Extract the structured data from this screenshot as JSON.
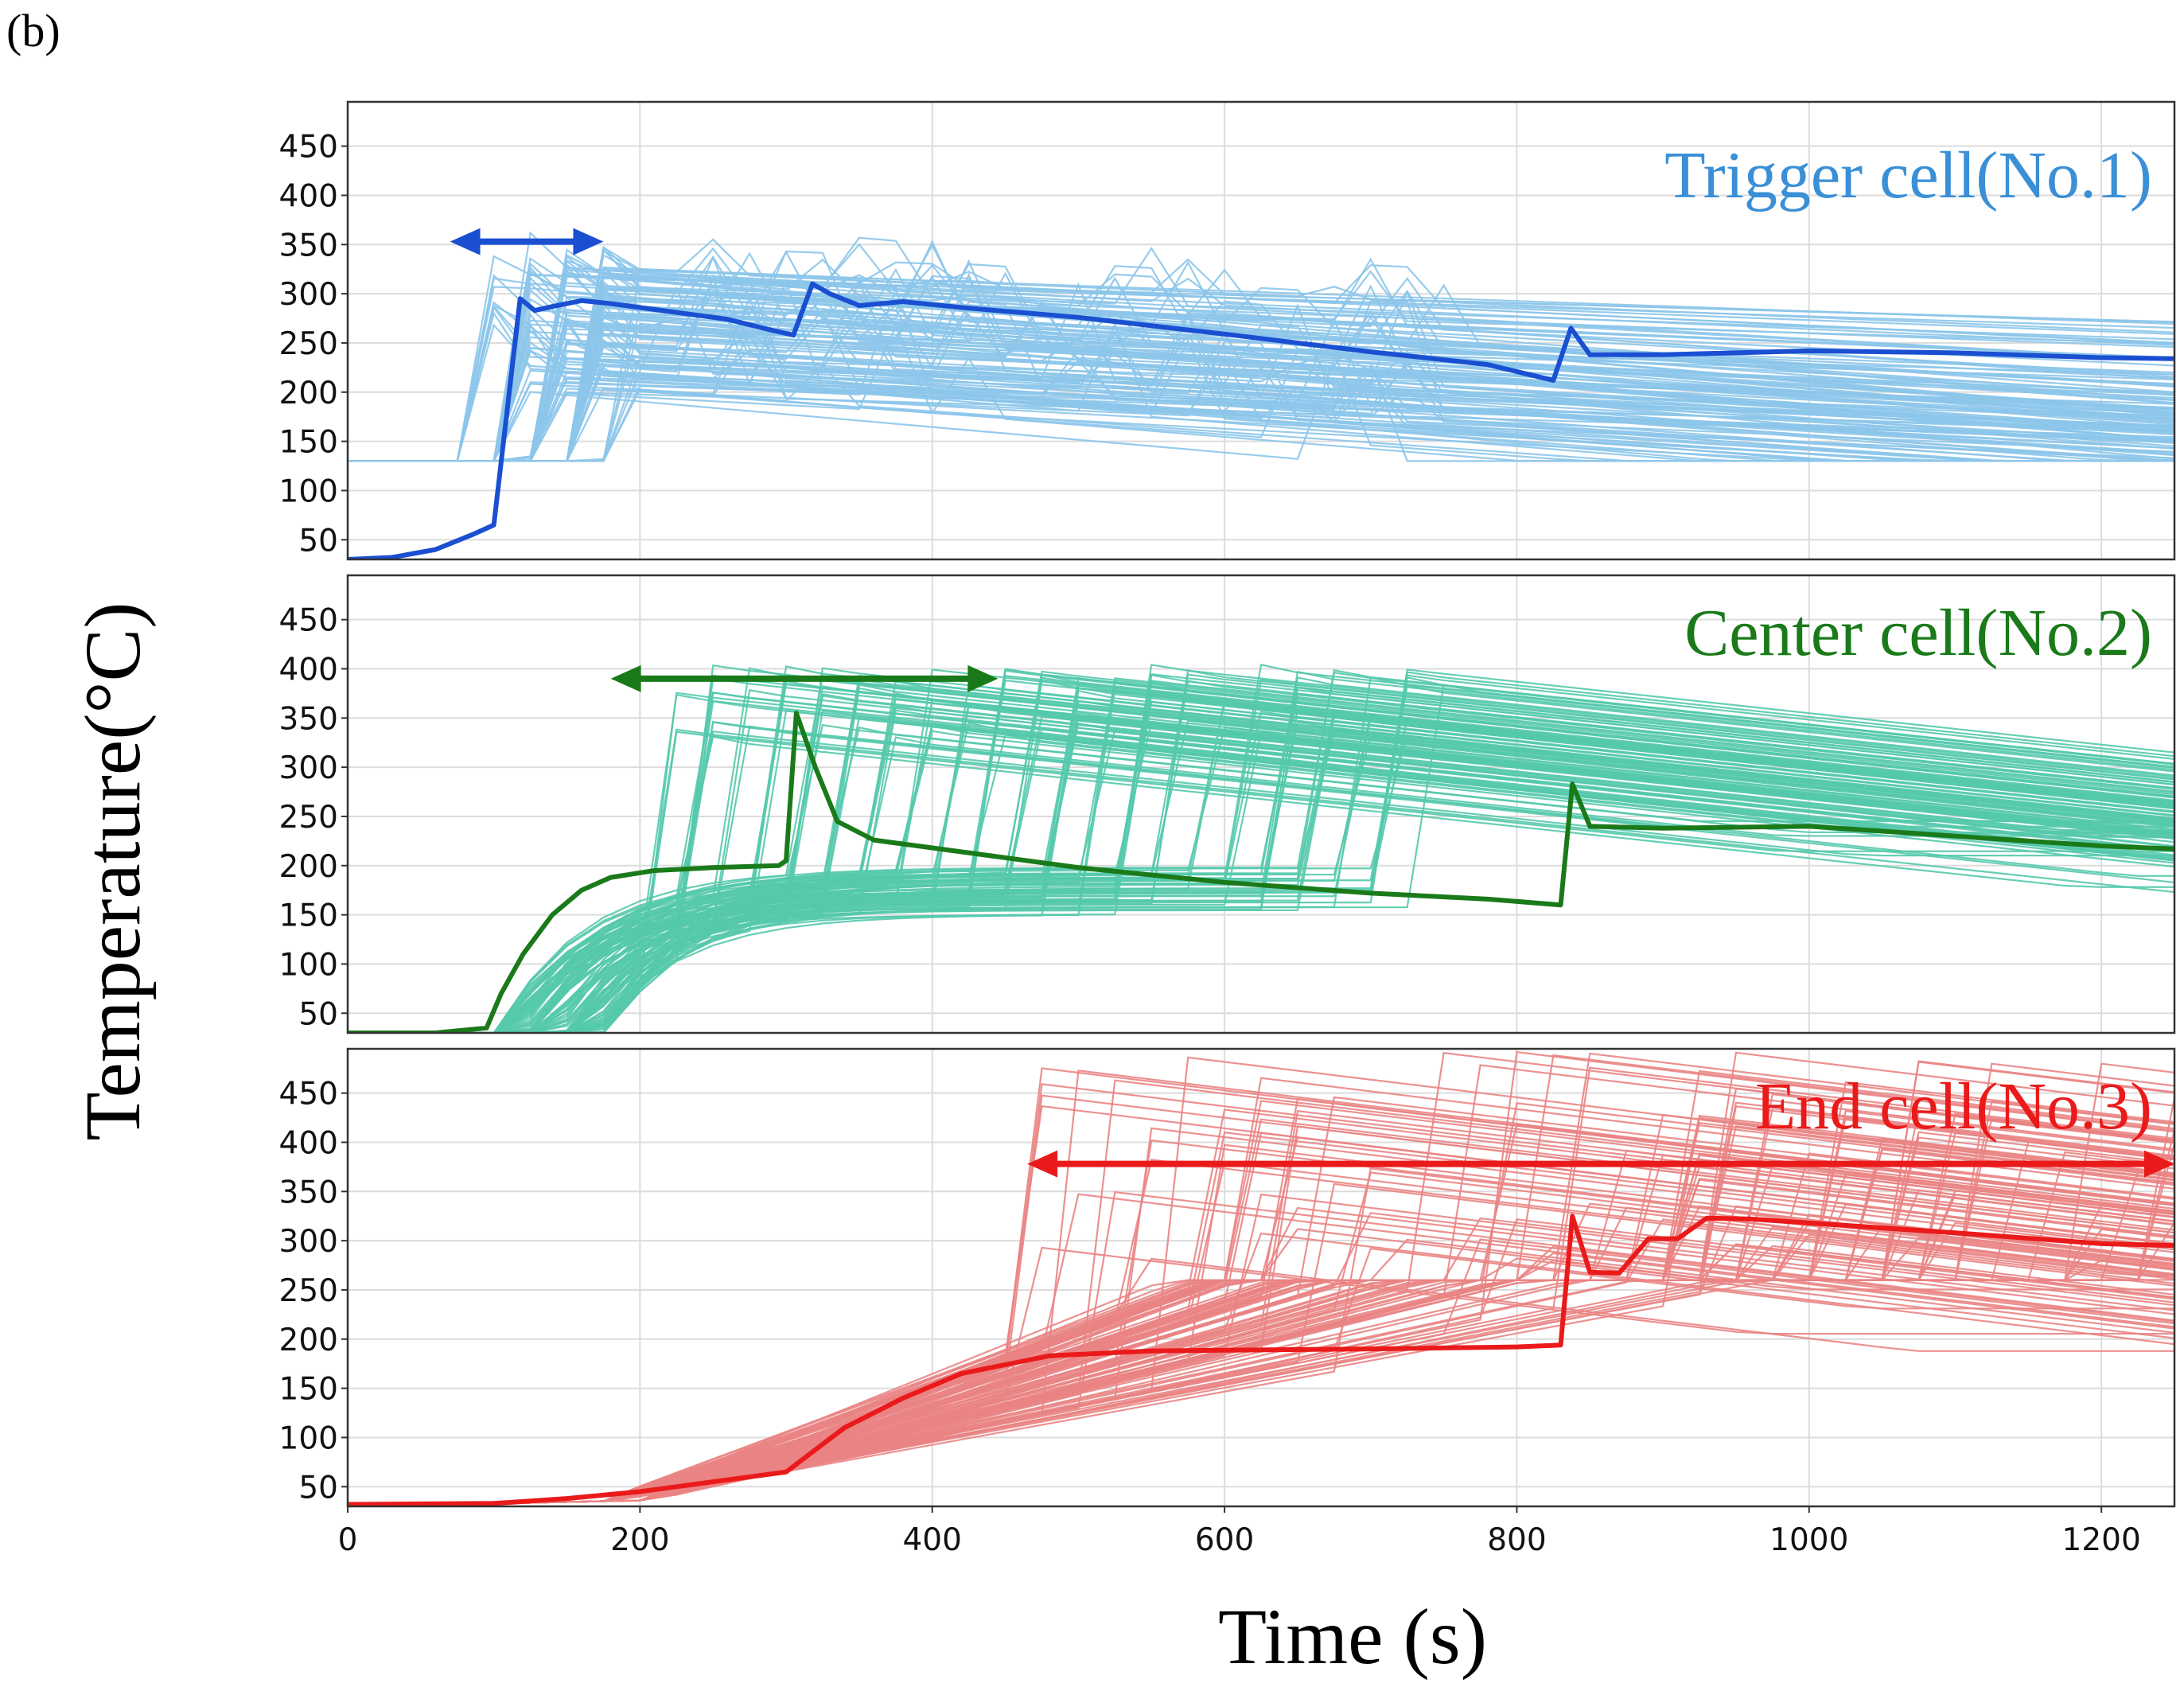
{
  "figure_tag": "(b)",
  "chart_data": {
    "type": "line",
    "figure_label": "(b)",
    "xlabel": "Time (s)",
    "ylabel": "Temperature(°C)",
    "xlim": [
      0,
      1250
    ],
    "ylim": [
      30,
      495
    ],
    "xticks": [
      0,
      200,
      400,
      600,
      800,
      1000,
      1200
    ],
    "yticks": [
      50,
      100,
      150,
      200,
      250,
      300,
      350,
      400,
      450
    ],
    "grid": true,
    "panels": [
      {
        "name": "Trigger cell(No.1)",
        "ensemble_color": "#8cc5ea",
        "accent_color": "#1a4fd1",
        "label_color": "#3a8fd6",
        "arrow": {
          "from": 70,
          "to": 175,
          "level": 353
        },
        "highlight_series": [
          [
            0,
            30
          ],
          [
            30,
            32
          ],
          [
            60,
            40
          ],
          [
            85,
            55
          ],
          [
            100,
            65
          ],
          [
            118,
            295
          ],
          [
            128,
            283
          ],
          [
            140,
            287
          ],
          [
            160,
            293
          ],
          [
            180,
            290
          ],
          [
            220,
            282
          ],
          [
            260,
            274
          ],
          [
            290,
            263
          ],
          [
            305,
            258
          ],
          [
            318,
            310
          ],
          [
            330,
            300
          ],
          [
            350,
            288
          ],
          [
            380,
            292
          ],
          [
            420,
            286
          ],
          [
            500,
            276
          ],
          [
            600,
            259
          ],
          [
            700,
            241
          ],
          [
            780,
            228
          ],
          [
            825,
            212
          ],
          [
            837,
            265
          ],
          [
            850,
            238
          ],
          [
            900,
            238
          ],
          [
            1000,
            242
          ],
          [
            1100,
            240
          ],
          [
            1200,
            235
          ],
          [
            1250,
            234
          ]
        ]
      },
      {
        "name": "Center cell(No.2)",
        "ensemble_color": "#55c9ac",
        "accent_color": "#1a7a1a",
        "label_color": "#1a7a1a",
        "arrow": {
          "from": 180,
          "to": 445,
          "level": 390
        },
        "highlight_series": [
          [
            0,
            30
          ],
          [
            60,
            30
          ],
          [
            95,
            35
          ],
          [
            105,
            70
          ],
          [
            120,
            110
          ],
          [
            140,
            150
          ],
          [
            160,
            175
          ],
          [
            180,
            188
          ],
          [
            210,
            195
          ],
          [
            250,
            198
          ],
          [
            295,
            200
          ],
          [
            300,
            205
          ],
          [
            307,
            355
          ],
          [
            320,
            300
          ],
          [
            335,
            245
          ],
          [
            360,
            226
          ],
          [
            400,
            218
          ],
          [
            450,
            208
          ],
          [
            500,
            198
          ],
          [
            600,
            183
          ],
          [
            700,
            172
          ],
          [
            780,
            166
          ],
          [
            830,
            160
          ],
          [
            838,
            283
          ],
          [
            850,
            240
          ],
          [
            900,
            238
          ],
          [
            1000,
            240
          ],
          [
            1100,
            230
          ],
          [
            1200,
            220
          ],
          [
            1250,
            217
          ]
        ]
      },
      {
        "name": "End cell(No.3)",
        "ensemble_color": "#ea8484",
        "accent_color": "#ea1a1a",
        "label_color": "#ea1a1a",
        "arrow": {
          "from": 465,
          "to": 1250,
          "level": 378
        },
        "highlight_series": [
          [
            0,
            32
          ],
          [
            100,
            33
          ],
          [
            150,
            38
          ],
          [
            200,
            45
          ],
          [
            250,
            55
          ],
          [
            300,
            65
          ],
          [
            340,
            110
          ],
          [
            380,
            140
          ],
          [
            420,
            165
          ],
          [
            480,
            183
          ],
          [
            550,
            188
          ],
          [
            700,
            190
          ],
          [
            800,
            192
          ],
          [
            830,
            194
          ],
          [
            838,
            325
          ],
          [
            850,
            268
          ],
          [
            870,
            267
          ],
          [
            890,
            302
          ],
          [
            910,
            302
          ],
          [
            930,
            323
          ],
          [
            960,
            322
          ],
          [
            1000,
            318
          ],
          [
            1100,
            308
          ],
          [
            1200,
            297
          ],
          [
            1250,
            295
          ]
        ]
      }
    ]
  }
}
